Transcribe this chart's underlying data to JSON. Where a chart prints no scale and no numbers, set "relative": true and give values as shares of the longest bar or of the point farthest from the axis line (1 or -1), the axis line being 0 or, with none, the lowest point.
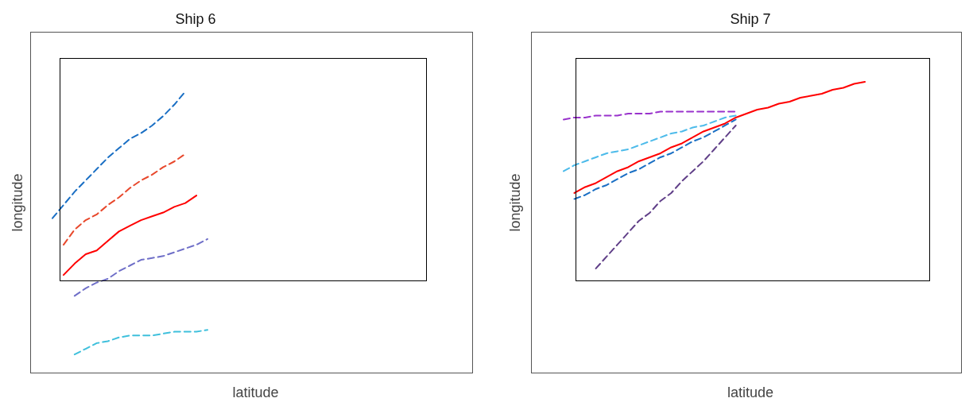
{
  "chart_data": [
    {
      "type": "line",
      "title": "Ship 6",
      "xlabel": "latitude",
      "ylabel": "longitude",
      "relative": true,
      "marker": "none",
      "categories": [
        null,
        null,
        null,
        null,
        null,
        null,
        null,
        null,
        null,
        null,
        null,
        null,
        null,
        null,
        null
      ],
      "series": [
        {
          "color": "#1a6fc4",
          "line_style": "dashed",
          "values": [
            0.33,
            0.4,
            0.47,
            0.53,
            0.59,
            0.65,
            0.7,
            0.75,
            0.78,
            0.82,
            0.87,
            0.93,
            1,
            null,
            null
          ]
        },
        {
          "color": "#e8482c",
          "line_style": "dashed",
          "values": [
            null,
            0.19,
            0.27,
            0.32,
            0.35,
            0.4,
            0.44,
            0.49,
            0.53,
            0.56,
            0.6,
            0.63,
            0.67,
            null,
            null
          ]
        },
        {
          "color": "#ff0000",
          "line_style": "solid",
          "values": [
            null,
            0.03,
            0.09,
            0.14,
            0.16,
            0.21,
            0.26,
            0.29,
            0.32,
            0.34,
            0.36,
            0.39,
            0.41,
            0.45,
            null
          ]
        },
        {
          "color": "#6f6fc8",
          "line_style": "dashed",
          "values": [
            null,
            null,
            -0.08,
            -0.04,
            -0.01,
            0.01,
            0.05,
            0.08,
            0.11,
            0.12,
            0.13,
            0.15,
            0.17,
            0.19,
            0.22
          ]
        },
        {
          "color": "#3fc0dc",
          "line_style": "dashed",
          "values": [
            null,
            null,
            -0.39,
            -0.36,
            -0.33,
            -0.32,
            -0.3,
            -0.29,
            -0.29,
            -0.29,
            -0.28,
            -0.27,
            -0.27,
            -0.27,
            -0.26
          ]
        }
      ]
    },
    {
      "type": "line",
      "title": "Ship 7",
      "xlabel": "latitude",
      "ylabel": "longitude",
      "relative": true,
      "marker": "none",
      "categories": [
        null,
        null,
        null,
        null,
        null,
        null,
        null,
        null,
        null,
        null,
        null,
        null,
        null,
        null,
        null,
        null,
        null,
        null,
        null,
        null,
        null,
        null,
        null,
        null,
        null,
        null,
        null,
        null,
        null
      ],
      "series": [
        {
          "color": "#9933cc",
          "line_style": "dashed",
          "values": [
            0.81,
            0.82,
            0.82,
            0.83,
            0.83,
            0.83,
            0.84,
            0.84,
            0.84,
            0.85,
            0.85,
            0.85,
            0.85,
            0.85,
            0.85,
            0.85,
            0.85,
            null,
            null,
            null,
            null,
            null,
            null,
            null,
            null,
            null,
            null,
            null,
            null
          ]
        },
        {
          "color": "#4dbbea",
          "line_style": "dashed",
          "values": [
            0.55,
            0.58,
            0.6,
            0.62,
            0.64,
            0.65,
            0.66,
            0.68,
            0.7,
            0.72,
            0.74,
            0.75,
            0.77,
            0.78,
            0.8,
            0.82,
            0.83,
            null,
            null,
            null,
            null,
            null,
            null,
            null,
            null,
            null,
            null,
            null,
            null
          ]
        },
        {
          "color": "#1a6fc4",
          "line_style": "dashed",
          "values": [
            null,
            0.41,
            0.43,
            0.46,
            0.48,
            0.51,
            0.54,
            0.56,
            0.59,
            0.62,
            0.64,
            0.67,
            0.7,
            0.72,
            0.75,
            0.78,
            0.81,
            null,
            null,
            null,
            null,
            null,
            null,
            null,
            null,
            null,
            null,
            null,
            null
          ]
        },
        {
          "color": "#603f88",
          "line_style": "dashed",
          "values": [
            null,
            null,
            null,
            0.06,
            0.12,
            0.18,
            0.24,
            0.3,
            0.34,
            0.4,
            0.44,
            0.5,
            0.55,
            0.6,
            0.66,
            0.72,
            0.78,
            null,
            null,
            null,
            null,
            null,
            null,
            null,
            null,
            null,
            null,
            null,
            null
          ]
        },
        {
          "color": "#ff0000",
          "line_style": "solid",
          "values": [
            null,
            0.44,
            0.47,
            0.49,
            0.52,
            0.55,
            0.57,
            0.6,
            0.62,
            0.64,
            0.67,
            0.69,
            0.72,
            0.75,
            0.77,
            0.79,
            0.82,
            0.84,
            0.86,
            0.87,
            0.89,
            0.9,
            0.92,
            0.93,
            0.94,
            0.96,
            0.97,
            0.99,
            1
          ]
        }
      ]
    }
  ]
}
